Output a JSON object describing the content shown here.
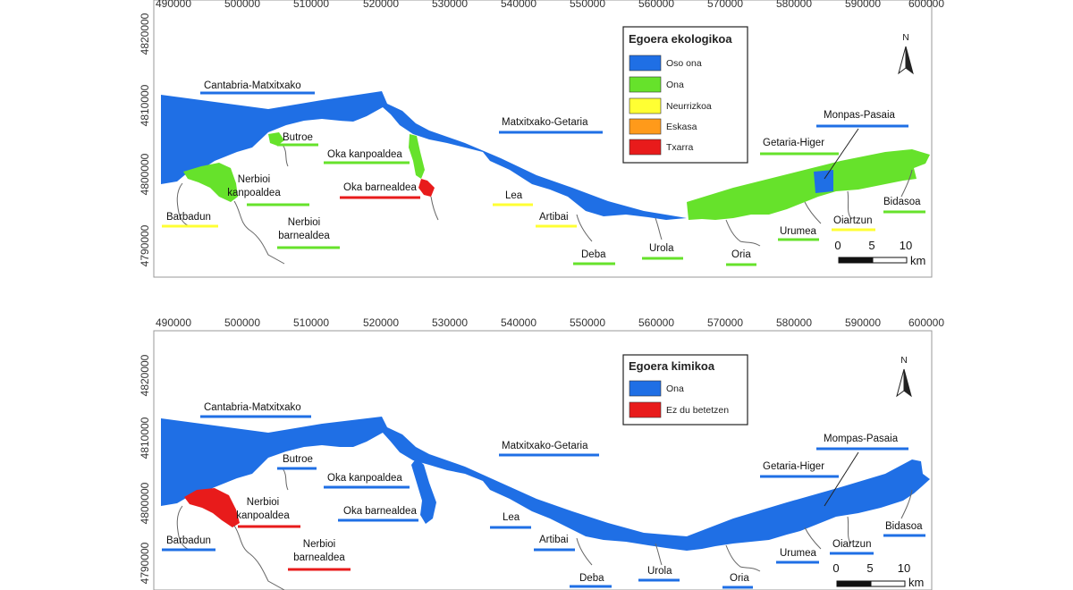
{
  "x_ticks": [
    "490000",
    "500000",
    "510000",
    "520000",
    "530000",
    "540000",
    "550000",
    "560000",
    "570000",
    "580000",
    "590000",
    "600000"
  ],
  "y_ticks": [
    "4820000",
    "4810000",
    "4800000",
    "4790000"
  ],
  "colors": {
    "oso_ona": "#1f6fe5",
    "ona": "#66e22b",
    "neurrizkoa": "#ffff33",
    "eskasa": "#ff9a1a",
    "txarra": "#e81b1b",
    "chem_ona": "#1f6fe5",
    "chem_ez": "#e81b1b"
  },
  "north": "N",
  "scale": {
    "labels": [
      "0",
      "5",
      "10"
    ],
    "unit": "km"
  },
  "maps": [
    {
      "legend": {
        "title": "Egoera ekologikoa",
        "items": [
          {
            "label": "Oso ona",
            "color": "#1f6fe5"
          },
          {
            "label": "Ona",
            "color": "#66e22b"
          },
          {
            "label": "Neurrizkoa",
            "color": "#ffff33"
          },
          {
            "label": "Eskasa",
            "color": "#ff9a1a"
          },
          {
            "label": "Txarra",
            "color": "#e81b1b"
          }
        ]
      },
      "labels": [
        {
          "text": "Cantabria-Matxitxako",
          "status": "Oso ona"
        },
        {
          "text": "Butroe",
          "status": "Ona"
        },
        {
          "text": "Oka kanpoaldea",
          "status": "Ona"
        },
        {
          "text": "Matxitxako-Getaria",
          "status": "Oso ona"
        },
        {
          "text": "Monpas-Pasaia",
          "status": "Oso ona"
        },
        {
          "text": "Getaria-Higer",
          "status": "Ona"
        },
        {
          "text": "Nerbioi",
          "status": "Ona"
        },
        {
          "text": "kanpoaldea",
          "status": "Ona"
        },
        {
          "text": "Oka barnealdea",
          "status": "Txarra"
        },
        {
          "text": "Barbadun",
          "status": "Neurrizkoa"
        },
        {
          "text": "Nerbioi",
          "status": "Ona"
        },
        {
          "text": "barnealdea",
          "status": "Ona"
        },
        {
          "text": "Lea",
          "status": "Neurrizkoa"
        },
        {
          "text": "Artibai",
          "status": "Neurrizkoa"
        },
        {
          "text": "Deba",
          "status": "Ona"
        },
        {
          "text": "Urola",
          "status": "Ona"
        },
        {
          "text": "Oria",
          "status": "Ona"
        },
        {
          "text": "Urumea",
          "status": "Ona"
        },
        {
          "text": "Oiartzun",
          "status": "Neurrizkoa"
        },
        {
          "text": "Bidasoa",
          "status": "Ona"
        }
      ]
    },
    {
      "legend": {
        "title": "Egoera kimikoa",
        "items": [
          {
            "label": "Ona",
            "color": "#1f6fe5"
          },
          {
            "label": "Ez du betetzen",
            "color": "#e81b1b"
          }
        ]
      },
      "labels": [
        {
          "text": "Cantabria-Matxitxako",
          "status": "Ona"
        },
        {
          "text": "Butroe",
          "status": "Ona"
        },
        {
          "text": "Oka kanpoaldea",
          "status": "Ona"
        },
        {
          "text": "Matxitxako-Getaria",
          "status": "Ona"
        },
        {
          "text": "Mompas-Pasaia",
          "status": "Ona"
        },
        {
          "text": "Getaria-Higer",
          "status": "Ona"
        },
        {
          "text": "Nerbioi",
          "status": "Ez du betetzen"
        },
        {
          "text": "kanpoaldea",
          "status": "Ez du betetzen"
        },
        {
          "text": "Oka barnealdea",
          "status": "Ona"
        },
        {
          "text": "Barbadun",
          "status": "Ona"
        },
        {
          "text": "Nerbioi",
          "status": "Ez du betetzen"
        },
        {
          "text": "barnealdea",
          "status": "Ez du betetzen"
        },
        {
          "text": "Lea",
          "status": "Ona"
        },
        {
          "text": "Artibai",
          "status": "Ona"
        },
        {
          "text": "Deba",
          "status": "Ona"
        },
        {
          "text": "Urola",
          "status": "Ona"
        },
        {
          "text": "Oria",
          "status": "Ona"
        },
        {
          "text": "Urumea",
          "status": "Ona"
        },
        {
          "text": "Oiartzun",
          "status": "Ona"
        },
        {
          "text": "Bidasoa",
          "status": "Ona"
        }
      ]
    }
  ]
}
